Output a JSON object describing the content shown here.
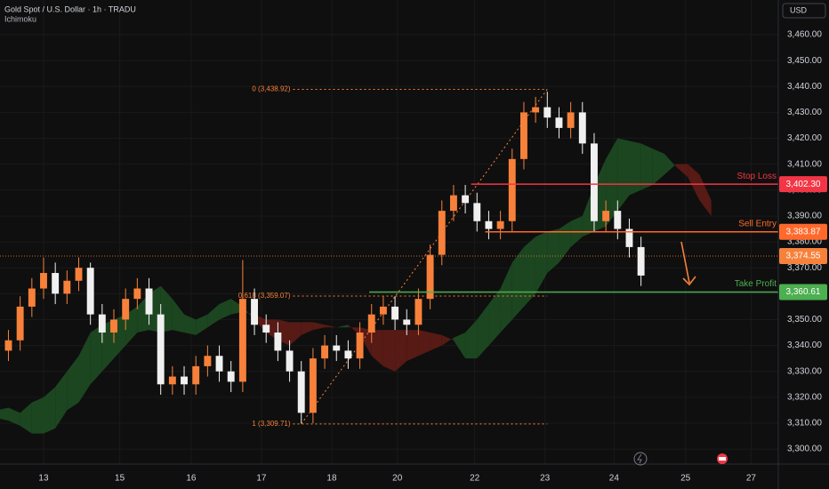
{
  "header": {
    "symbol": "Gold Spot / U.S. Dollar · 1h · TRADU",
    "indicator": "Ichimoku",
    "currency": "USD"
  },
  "chart_data": {
    "type": "candlestick",
    "x": [
      -3,
      -2,
      -1,
      0,
      1,
      2,
      3,
      4,
      5,
      6,
      7,
      8,
      9,
      10,
      11,
      12,
      13,
      14,
      15,
      16,
      17,
      18,
      19,
      20,
      21,
      22,
      23,
      24,
      25,
      26,
      27,
      28,
      29,
      30,
      31,
      32,
      33,
      34,
      35,
      36,
      37,
      38,
      39,
      40,
      41,
      42,
      43,
      44,
      45,
      46,
      47,
      48,
      49,
      50,
      51
    ],
    "open": [
      3338,
      3342,
      3355,
      3362,
      3368,
      3360,
      3365,
      3370,
      3352,
      3345,
      3350,
      3358,
      3362,
      3352,
      3325,
      3328,
      3325,
      3332,
      3336,
      3330,
      3326,
      3358,
      3348,
      3345,
      3338,
      3330,
      3314,
      3335,
      3340,
      3338,
      3335,
      3345,
      3352,
      3355,
      3350,
      3348,
      3358,
      3375,
      3392,
      3398,
      3395,
      3388,
      3385,
      3388,
      3412,
      3430,
      3432,
      3428,
      3424,
      3430,
      3418,
      3388,
      3392,
      3385,
      3378
    ],
    "high": [
      3346,
      3359,
      3366,
      3374,
      3372,
      3369,
      3374,
      3372,
      3356,
      3354,
      3362,
      3366,
      3366,
      3356,
      3332,
      3332,
      3336,
      3340,
      3340,
      3334,
      3373,
      3362,
      3352,
      3349,
      3342,
      3334,
      3339,
      3344,
      3344,
      3342,
      3349,
      3356,
      3359,
      3359,
      3354,
      3362,
      3379,
      3396,
      3402,
      3402,
      3399,
      3392,
      3392,
      3416,
      3434,
      3436,
      3438,
      3432,
      3434,
      3434,
      3422,
      3396,
      3396,
      3389,
      3382
    ],
    "low": [
      3334,
      3338,
      3351,
      3358,
      3356,
      3356,
      3361,
      3348,
      3341,
      3341,
      3346,
      3354,
      3348,
      3321,
      3321,
      3321,
      3321,
      3328,
      3326,
      3322,
      3322,
      3344,
      3341,
      3334,
      3326,
      3310,
      3310,
      3331,
      3334,
      3331,
      3331,
      3341,
      3348,
      3346,
      3344,
      3344,
      3354,
      3371,
      3388,
      3391,
      3384,
      3381,
      3381,
      3384,
      3408,
      3426,
      3424,
      3420,
      3420,
      3414,
      3384,
      3384,
      3381,
      3374,
      3363
    ],
    "close": [
      3342,
      3355,
      3362,
      3368,
      3360,
      3365,
      3370,
      3352,
      3345,
      3350,
      3358,
      3362,
      3352,
      3325,
      3328,
      3325,
      3332,
      3336,
      3330,
      3326,
      3358,
      3348,
      3345,
      3338,
      3330,
      3314,
      3335,
      3340,
      3338,
      3335,
      3345,
      3352,
      3355,
      3350,
      3348,
      3358,
      3375,
      3392,
      3398,
      3395,
      3388,
      3385,
      3388,
      3412,
      3430,
      3432,
      3428,
      3424,
      3430,
      3418,
      3388,
      3392,
      3385,
      3378,
      3367
    ],
    "up_color": "#f7813a",
    "down_color": "#f0f0f0",
    "ichimoku": {
      "x": [
        -4,
        -3,
        -2,
        -1,
        0,
        1,
        2,
        3,
        4,
        5,
        6,
        7,
        8,
        9,
        10,
        11,
        12,
        13,
        14,
        15,
        16,
        17,
        18,
        19,
        20,
        21,
        22,
        23,
        24,
        25,
        26,
        27,
        28,
        29,
        30,
        31,
        32,
        33,
        34,
        35,
        36,
        37,
        38,
        39,
        40,
        41,
        42,
        43,
        44,
        45,
        46,
        47,
        48,
        49,
        50,
        51,
        52,
        53,
        54,
        55,
        56,
        57
      ],
      "span_a": [
        3315,
        3316,
        3314,
        3318,
        3320,
        3324,
        3330,
        3336,
        3345,
        3348,
        3350,
        3352,
        3355,
        3360,
        3363,
        3358,
        3352,
        3350,
        3352,
        3356,
        3358,
        3355,
        3350,
        3345,
        3342,
        3340,
        3344,
        3346,
        3347,
        3347,
        3348,
        3344,
        3336,
        3332,
        3330,
        3334,
        3336,
        3338,
        3340,
        3343,
        3345,
        3350,
        3356,
        3362,
        3372,
        3378,
        3382,
        3384,
        3385,
        3388,
        3390,
        3402,
        3412,
        3420,
        3419,
        3418,
        3416,
        3414,
        3409,
        3405,
        3396,
        3390
      ],
      "span_b": [
        3312,
        3311,
        3309,
        3306,
        3306,
        3308,
        3315,
        3318,
        3325,
        3330,
        3335,
        3340,
        3345,
        3346,
        3345,
        3346,
        3345,
        3344,
        3347,
        3350,
        3352,
        3353,
        3352,
        3350,
        3350,
        3349,
        3349,
        3349,
        3348,
        3347,
        3347,
        3347,
        3346,
        3346,
        3346,
        3346,
        3346,
        3345,
        3344,
        3342,
        3335,
        3335,
        3340,
        3345,
        3350,
        3355,
        3360,
        3368,
        3372,
        3378,
        3382,
        3384,
        3386,
        3392,
        3398,
        3400,
        3402,
        3406,
        3410,
        3410,
        3406,
        3396
      ],
      "bull_color": "#1e4a22",
      "bear_color": "#5c1b16"
    },
    "levels": [
      {
        "name": "Stop Loss",
        "value": 3402.3,
        "label": "3,402.30",
        "color": "#f23645",
        "start_x": 36.5
      },
      {
        "name": "Sell Entry",
        "value": 3383.87,
        "label": "3,383.87",
        "color": "#ff6a2c",
        "start_x": 37.7
      },
      {
        "name": "Take Profit",
        "value": 3360.61,
        "label": "3,360.61",
        "color": "#4caf50",
        "start_x": 27.8
      }
    ],
    "last_price": {
      "value": 3374.55,
      "label": "3,374.55",
      "color": "#f7813a"
    },
    "fib": {
      "x_start": 21.3,
      "x_end": 43.0,
      "color": "#f7813a",
      "levels": [
        {
          "ratio": 0,
          "price": 3438.92,
          "label": "0 (3,438.92)"
        },
        {
          "ratio": 0.618,
          "price": 3359.07,
          "label": "0.618 (3,359.07)"
        },
        {
          "ratio": 1,
          "price": 3309.71,
          "label": "1 (3,309.71)"
        }
      ]
    },
    "xlim": [
      -3.72,
      62.72
    ],
    "xticks": [
      {
        "value": 0,
        "label": "13"
      },
      {
        "value": 6.5,
        "label": "15"
      },
      {
        "value": 12.6,
        "label": "16"
      },
      {
        "value": 18.6,
        "label": "17"
      },
      {
        "value": 24.6,
        "label": "18"
      },
      {
        "value": 30.2,
        "label": "20"
      },
      {
        "value": 36.8,
        "label": "22"
      },
      {
        "value": 42.8,
        "label": "23"
      },
      {
        "value": 48.7,
        "label": "24"
      },
      {
        "value": 54.8,
        "label": "25"
      },
      {
        "value": 60.4,
        "label": "27"
      }
    ],
    "ylim": [
      3294.2,
      3473.4
    ],
    "yticks": [
      {
        "value": 3300,
        "label": "3,300.00"
      },
      {
        "value": 3310,
        "label": "3,310.00"
      },
      {
        "value": 3320,
        "label": "3,320.00"
      },
      {
        "value": 3330,
        "label": "3,330.00"
      },
      {
        "value": 3340,
        "label": "3,340.00"
      },
      {
        "value": 3350,
        "label": "3,350.00"
      },
      {
        "value": 3360,
        "label": "3,360.00"
      },
      {
        "value": 3370,
        "label": "3,370.00"
      },
      {
        "value": 3380,
        "label": "3,380.00"
      },
      {
        "value": 3390,
        "label": "3,390.00"
      },
      {
        "value": 3400,
        "label": "3,400.00"
      },
      {
        "value": 3410,
        "label": "3,410.00"
      },
      {
        "value": 3420,
        "label": "3,420.00"
      },
      {
        "value": 3430,
        "label": "3,430.00"
      },
      {
        "value": 3440,
        "label": "3,440.00"
      },
      {
        "value": 3450,
        "label": "3,450.00"
      },
      {
        "value": 3460,
        "label": "3,460.00"
      }
    ],
    "grid": true
  }
}
